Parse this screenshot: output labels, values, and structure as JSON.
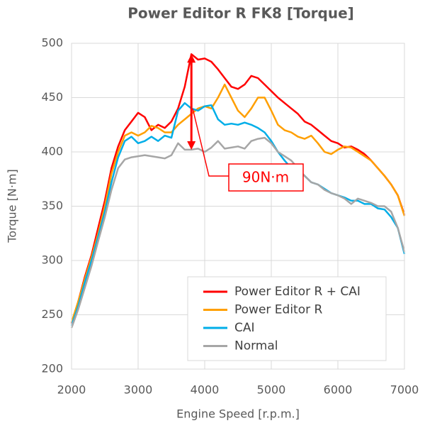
{
  "chart_data": {
    "type": "line",
    "title": "Power Editor R FK8 [Torque]",
    "x_label": "Engine Speed [r.p.m.]",
    "y_label": "Torque [N·m]",
    "x": [
      2000,
      2100,
      2200,
      2300,
      2400,
      2500,
      2600,
      2700,
      2800,
      2900,
      3000,
      3100,
      3200,
      3300,
      3400,
      3500,
      3600,
      3700,
      3800,
      3900,
      4000,
      4100,
      4200,
      4300,
      4400,
      4500,
      4600,
      4700,
      4800,
      4900,
      5000,
      5100,
      5200,
      5300,
      5400,
      5500,
      5600,
      5700,
      5800,
      5900,
      6000,
      6100,
      6200,
      6300,
      6400,
      6500,
      6600,
      6700,
      6800,
      6900,
      7000
    ],
    "series": [
      {
        "name": "Power Editor R + CAI",
        "color": "#ff0000",
        "values": [
          242,
          262,
          285,
          305,
          330,
          355,
          385,
          405,
          420,
          428,
          436,
          432,
          420,
          425,
          422,
          428,
          440,
          460,
          490,
          485,
          486,
          483,
          476,
          468,
          460,
          458,
          462,
          470,
          468,
          462,
          456,
          450,
          445,
          440,
          435,
          428,
          425,
          420,
          415,
          410,
          408,
          404,
          405,
          402,
          398,
          392,
          385,
          378,
          370,
          360,
          342
        ]
      },
      {
        "name": "Power Editor R",
        "color": "#ff9f00",
        "values": [
          243,
          262,
          283,
          303,
          325,
          350,
          380,
          400,
          415,
          418,
          415,
          418,
          424,
          422,
          418,
          418,
          425,
          430,
          435,
          440,
          442,
          440,
          450,
          462,
          450,
          438,
          432,
          440,
          450,
          450,
          438,
          425,
          420,
          418,
          414,
          412,
          415,
          408,
          400,
          398,
          402,
          405,
          404,
          400,
          396,
          392,
          385,
          378,
          370,
          360,
          341
        ]
      },
      {
        "name": "CAI",
        "color": "#00aee8",
        "values": [
          240,
          258,
          280,
          300,
          322,
          345,
          372,
          395,
          410,
          414,
          408,
          410,
          414,
          410,
          415,
          413,
          438,
          445,
          440,
          438,
          442,
          443,
          430,
          425,
          426,
          425,
          427,
          425,
          422,
          418,
          410,
          400,
          392,
          385,
          382,
          378,
          372,
          370,
          366,
          362,
          360,
          358,
          355,
          355,
          352,
          352,
          348,
          347,
          340,
          330,
          306
        ]
      },
      {
        "name": "Normal",
        "color": "#a6a6a6",
        "values": [
          238,
          255,
          275,
          295,
          318,
          340,
          365,
          385,
          393,
          395,
          396,
          397,
          396,
          395,
          394,
          397,
          408,
          402,
          402,
          403,
          400,
          404,
          410,
          403,
          404,
          405,
          403,
          410,
          412,
          413,
          408,
          400,
          396,
          392,
          385,
          378,
          372,
          370,
          365,
          362,
          360,
          357,
          352,
          357,
          355,
          353,
          350,
          350,
          345,
          330,
          308
        ]
      }
    ],
    "annotation": {
      "text": "90N·m",
      "color": "#ff0000"
    },
    "xlim": [
      2000,
      7000
    ],
    "xticks": [
      2000,
      3000,
      4000,
      5000,
      6000,
      7000
    ],
    "ylim": [
      200,
      500
    ],
    "yticks": [
      200,
      250,
      300,
      350,
      400,
      450,
      500
    ],
    "grid": true,
    "legend": "lower right"
  }
}
